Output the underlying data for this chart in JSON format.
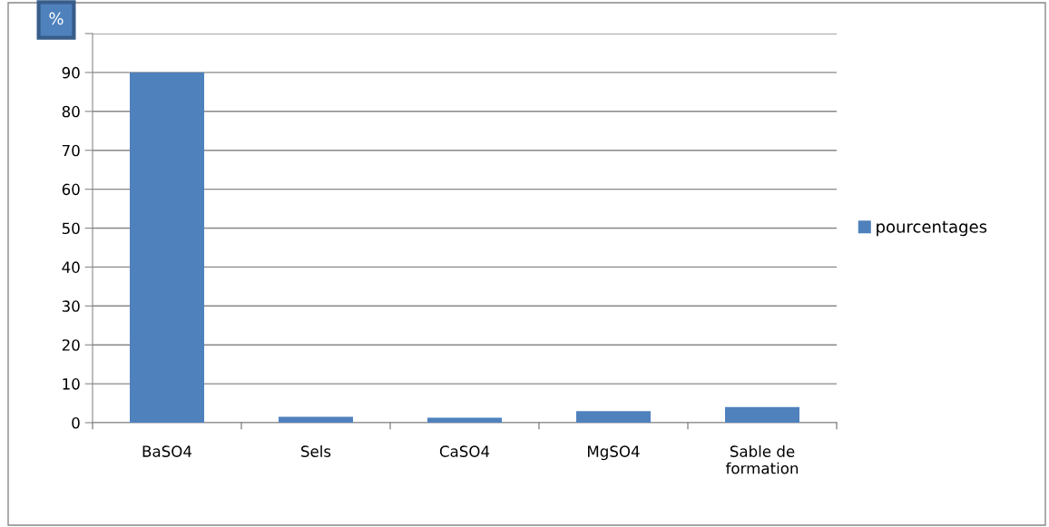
{
  "chart_data": {
    "type": "bar",
    "ylabel": "%",
    "categories": [
      "BaSO4",
      "Sels",
      "CaSO4",
      "MgSO4",
      "Sable de\nformation"
    ],
    "series": [
      {
        "name": "pourcentages",
        "color": "#4f81bd",
        "values": [
          90,
          1.5,
          1.3,
          3,
          4
        ]
      }
    ],
    "ylim": [
      0,
      100
    ],
    "yticks": [
      0,
      10,
      20,
      30,
      40,
      50,
      60,
      70,
      80,
      90,
      {
        "value": 100,
        "label": null
      }
    ],
    "grid": "y",
    "legend": "right"
  }
}
